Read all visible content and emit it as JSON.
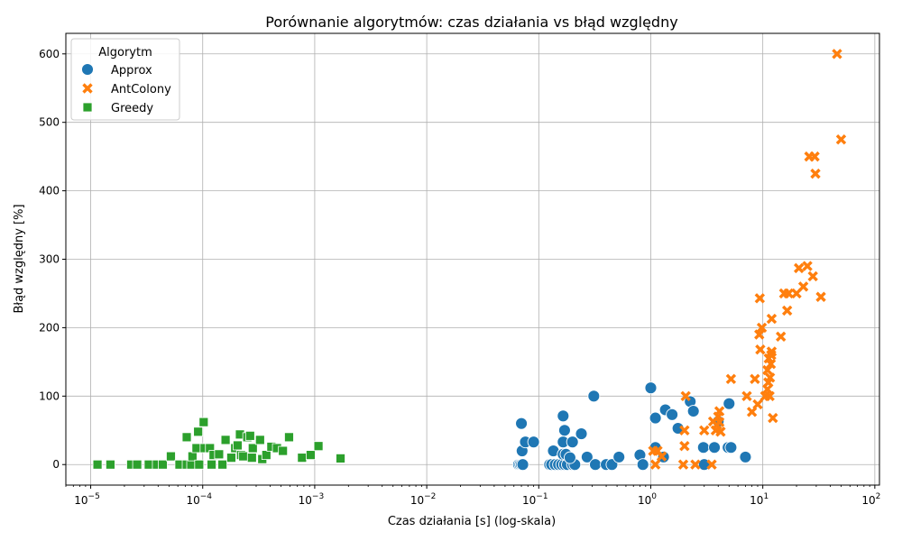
{
  "chart_data": {
    "type": "scatter",
    "title": "Porównanie algorytmów: czas działania vs błąd względny",
    "xlabel": "Czas działania [s] (log-skala)",
    "ylabel": "Błąd względny [%]",
    "xscale": "log",
    "xlim": [
      6e-06,
      110
    ],
    "ylim": [
      -30,
      630
    ],
    "xticks": [
      {
        "value": 1e-05,
        "base": "10",
        "exp": "−5"
      },
      {
        "value": 0.0001,
        "base": "10",
        "exp": "−4"
      },
      {
        "value": 0.001,
        "base": "10",
        "exp": "−3"
      },
      {
        "value": 0.01,
        "base": "10",
        "exp": "−2"
      },
      {
        "value": 0.1,
        "base": "10",
        "exp": "−1"
      },
      {
        "value": 1,
        "base": "10",
        "exp": "0"
      },
      {
        "value": 10,
        "base": "10",
        "exp": "1"
      },
      {
        "value": 100,
        "base": "10",
        "exp": "2"
      }
    ],
    "yticks": [
      0,
      100,
      200,
      300,
      400,
      500,
      600
    ],
    "grid": true,
    "legend": {
      "title": "Algorytm",
      "placement": "top-left"
    },
    "series": [
      {
        "name": "Approx",
        "marker": "circle",
        "color": "#1f77b4",
        "points": [
          [
            0.066,
            0
          ],
          [
            0.068,
            0
          ],
          [
            0.07,
            0
          ],
          [
            0.072,
            0
          ],
          [
            0.07,
            60
          ],
          [
            0.071,
            20
          ],
          [
            0.076,
            33
          ],
          [
            0.09,
            33
          ],
          [
            0.125,
            0
          ],
          [
            0.13,
            0
          ],
          [
            0.14,
            0
          ],
          [
            0.15,
            0
          ],
          [
            0.16,
            0
          ],
          [
            0.17,
            0
          ],
          [
            0.18,
            0
          ],
          [
            0.2,
            0
          ],
          [
            0.21,
            0
          ],
          [
            0.135,
            20
          ],
          [
            0.165,
            71
          ],
          [
            0.17,
            50
          ],
          [
            0.165,
            33
          ],
          [
            0.2,
            33
          ],
          [
            0.165,
            15
          ],
          [
            0.175,
            15
          ],
          [
            0.19,
            10
          ],
          [
            0.24,
            45
          ],
          [
            0.27,
            11
          ],
          [
            0.31,
            100
          ],
          [
            0.32,
            0
          ],
          [
            0.4,
            0
          ],
          [
            0.45,
            0
          ],
          [
            0.52,
            11
          ],
          [
            0.8,
            14
          ],
          [
            0.85,
            0
          ],
          [
            1.0,
            112
          ],
          [
            1.1,
            68
          ],
          [
            1.1,
            25
          ],
          [
            1.3,
            11
          ],
          [
            1.35,
            80
          ],
          [
            1.55,
            73
          ],
          [
            1.75,
            53
          ],
          [
            2.25,
            92
          ],
          [
            2.4,
            78
          ],
          [
            2.95,
            25
          ],
          [
            3.0,
            0
          ],
          [
            3.7,
            25
          ],
          [
            4.0,
            63
          ],
          [
            4.9,
            25
          ],
          [
            5.2,
            25
          ],
          [
            5.0,
            89
          ],
          [
            7.0,
            11
          ]
        ]
      },
      {
        "name": "AntColony",
        "marker": "x",
        "color": "#ff7f0e",
        "points": [
          [
            1.05,
            20
          ],
          [
            1.1,
            0
          ],
          [
            1.15,
            20
          ],
          [
            1.25,
            12
          ],
          [
            1.95,
            0
          ],
          [
            2.0,
            27
          ],
          [
            2.0,
            50
          ],
          [
            2.05,
            100
          ],
          [
            2.5,
            0
          ],
          [
            3.0,
            50
          ],
          [
            3.5,
            0
          ],
          [
            3.6,
            63
          ],
          [
            3.8,
            50
          ],
          [
            3.9,
            58
          ],
          [
            4.0,
            70
          ],
          [
            4.1,
            62
          ],
          [
            4.2,
            48
          ],
          [
            4.1,
            78
          ],
          [
            5.2,
            125
          ],
          [
            7.2,
            100
          ],
          [
            8.0,
            77
          ],
          [
            8.5,
            125
          ],
          [
            9.0,
            88
          ],
          [
            9.3,
            190
          ],
          [
            9.4,
            243
          ],
          [
            9.5,
            168
          ],
          [
            9.8,
            200
          ],
          [
            10.5,
            100
          ],
          [
            11.0,
            138
          ],
          [
            11.0,
            110
          ],
          [
            11.2,
            120
          ],
          [
            11.3,
            155
          ],
          [
            11.5,
            100
          ],
          [
            11.6,
            127
          ],
          [
            11.8,
            147
          ],
          [
            12.0,
            165
          ],
          [
            11.9,
            160
          ],
          [
            12.0,
            213
          ],
          [
            12.3,
            68
          ],
          [
            14.5,
            187
          ],
          [
            16.5,
            225
          ],
          [
            15.5,
            250
          ],
          [
            17.0,
            250
          ],
          [
            20.0,
            250
          ],
          [
            21.0,
            287
          ],
          [
            23.0,
            260
          ],
          [
            25.0,
            290
          ],
          [
            26.0,
            450
          ],
          [
            29.0,
            450
          ],
          [
            28.0,
            275
          ],
          [
            29.5,
            425
          ],
          [
            33.0,
            245
          ],
          [
            46.0,
            600
          ],
          [
            50.0,
            475
          ]
        ]
      },
      {
        "name": "Greedy",
        "marker": "square",
        "color": "#2ca02c",
        "points": [
          [
            1.15e-05,
            0
          ],
          [
            1.5e-05,
            0
          ],
          [
            2.3e-05,
            0
          ],
          [
            2.6e-05,
            0
          ],
          [
            3.3e-05,
            0
          ],
          [
            3.9e-05,
            0
          ],
          [
            4.4e-05,
            0
          ],
          [
            5.2e-05,
            12
          ],
          [
            6.2e-05,
            0
          ],
          [
            7.2e-05,
            0
          ],
          [
            7.2e-05,
            40
          ],
          [
            7.9e-05,
            0
          ],
          [
            8.1e-05,
            12
          ],
          [
            8.8e-05,
            24
          ],
          [
            9.1e-05,
            48
          ],
          [
            9.3e-05,
            0
          ],
          [
            0.000102,
            62
          ],
          [
            0.000104,
            24
          ],
          [
            0.000116,
            24
          ],
          [
            0.00012,
            0
          ],
          [
            0.000125,
            14
          ],
          [
            0.00014,
            15
          ],
          [
            0.00015,
            0
          ],
          [
            0.00016,
            36
          ],
          [
            0.00018,
            10
          ],
          [
            0.000195,
            24
          ],
          [
            0.000205,
            28
          ],
          [
            0.000215,
            44
          ],
          [
            0.00022,
            14
          ],
          [
            0.00023,
            12
          ],
          [
            0.00025,
            40
          ],
          [
            0.000265,
            42
          ],
          [
            0.000275,
            10
          ],
          [
            0.00028,
            24
          ],
          [
            0.000325,
            36
          ],
          [
            0.00034,
            8
          ],
          [
            0.00037,
            14
          ],
          [
            0.00041,
            26
          ],
          [
            0.00046,
            24
          ],
          [
            0.00052,
            20
          ],
          [
            0.00059,
            40
          ],
          [
            0.00077,
            10
          ],
          [
            0.00092,
            14
          ],
          [
            0.00108,
            27
          ],
          [
            0.0017,
            9
          ]
        ]
      }
    ]
  }
}
